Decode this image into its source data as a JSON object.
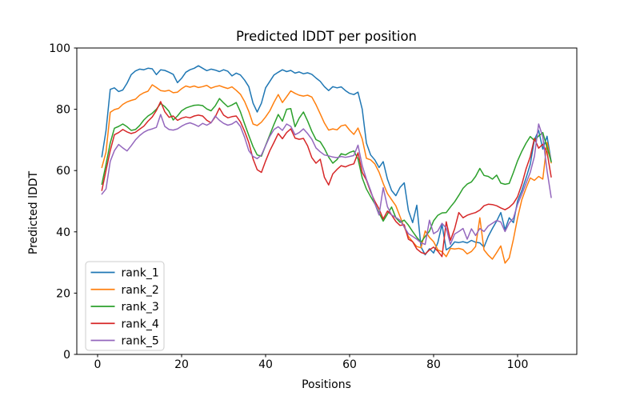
{
  "figure": {
    "background": "#ffffff"
  },
  "chart_data": {
    "type": "line",
    "title": "Predicted lDDT per position",
    "xlabel": "Positions",
    "ylabel": "Predicted lDDT",
    "grid": false,
    "legend_position": "lower left",
    "x_start": 1,
    "xticks": [
      0,
      20,
      40,
      60,
      80,
      100
    ],
    "yticks": [
      0,
      20,
      40,
      60,
      80,
      100
    ],
    "ylim": [
      0,
      100
    ],
    "xlim": [
      -5,
      114
    ],
    "series": [
      {
        "name": "rank_1",
        "color": "#1f77b4",
        "values": [
          64.5,
          73,
          86.5,
          87,
          85.8,
          86.3,
          88.5,
          91.3,
          92.5,
          93.1,
          92.9,
          93.4,
          93.2,
          91.3,
          92.9,
          92.7,
          92.1,
          91.4,
          88.7,
          90.1,
          92.1,
          92.9,
          93.4,
          94.2,
          93.4,
          92.6,
          93.1,
          92.8,
          92.3,
          92.9,
          92.4,
          90.9,
          91.8,
          91.2,
          89.5,
          87.4,
          82,
          79.1,
          82,
          87,
          89.1,
          91.2,
          92.1,
          92.9,
          92.3,
          92.7,
          91.8,
          92.2,
          91.6,
          91.9,
          91.4,
          90.2,
          89.1,
          87.4,
          86.1,
          87.4,
          87,
          87.3,
          86.1,
          85.2,
          84.8,
          85.6,
          80,
          69,
          65.1,
          63.5,
          61,
          62.9,
          57.2,
          53.5,
          51.8,
          54.5,
          56,
          47,
          43,
          48.7,
          35,
          32.5,
          34.5,
          33.1,
          36.5,
          42.4,
          34.1,
          35,
          36.7,
          36.5,
          36.8,
          36.4,
          37.2,
          36.6,
          36.4,
          35,
          38.5,
          41.1,
          43.5,
          46.3,
          40.7,
          44.6,
          43,
          50.1,
          53.5,
          57.5,
          62,
          70,
          73.1,
          67,
          71.2,
          62.9
        ]
      },
      {
        "name": "rank_2",
        "color": "#ff7f0e",
        "values": [
          61,
          66,
          79,
          79.9,
          80.3,
          81.6,
          82.4,
          82.9,
          83.3,
          84.6,
          85.4,
          85.9,
          88,
          87.1,
          86.1,
          85.9,
          86.2,
          85.4,
          85.6,
          86.7,
          87.6,
          87.2,
          87.6,
          87.1,
          87.4,
          87.8,
          86.9,
          87.4,
          87.7,
          87.2,
          86.8,
          87.3,
          86.2,
          84.9,
          82.5,
          79.3,
          75.2,
          74.7,
          75.8,
          77.5,
          79.5,
          82.3,
          84.8,
          82.2,
          84.1,
          86,
          85.2,
          84.6,
          84.3,
          84.6,
          84,
          81.5,
          78.5,
          75.5,
          73.2,
          73.6,
          73.3,
          74.6,
          74.9,
          73.2,
          71.8,
          73.9,
          70.3,
          64,
          63.5,
          62.2,
          59.5,
          55.8,
          52.5,
          50.5,
          48.5,
          45,
          41.5,
          38.5,
          36.8,
          35.2,
          34.8,
          40.3,
          38.2,
          36.8,
          34.1,
          33.5,
          31.9,
          34.6,
          34.4,
          34.6,
          34.2,
          32.8,
          33.6,
          35.2,
          44.6,
          34.1,
          32.4,
          31.1,
          33.2,
          35.4,
          29.8,
          31.5,
          37.6,
          44.6,
          50.5,
          54.2,
          57.6,
          56.8,
          58.1,
          57.2,
          69.2,
          62.5
        ]
      },
      {
        "name": "rank_3",
        "color": "#2ca02c",
        "values": [
          55.5,
          62,
          69,
          73.8,
          74.4,
          75.2,
          74.3,
          73.1,
          73.4,
          74.7,
          76.5,
          77.8,
          78.7,
          80,
          81.9,
          80.9,
          79.3,
          76.5,
          77.8,
          79.5,
          80.4,
          80.9,
          81.3,
          81.4,
          81.2,
          80.1,
          79.5,
          81.1,
          83.5,
          82.1,
          80.8,
          81.4,
          82.2,
          79.2,
          75.2,
          71.5,
          67.8,
          65.1,
          64.7,
          68.2,
          71.7,
          75.1,
          78.3,
          76.1,
          80,
          80.2,
          74.3,
          77.1,
          79.1,
          76.2,
          72.8,
          70.1,
          69.4,
          67.2,
          64.4,
          62.4,
          63.6,
          65.5,
          65.1,
          65.9,
          66.4,
          63.8,
          57.6,
          54,
          51.5,
          49.2,
          46.2,
          43.5,
          45.8,
          48.1,
          44.6,
          43.1,
          43.8,
          42.2,
          40.1,
          38.2,
          36.6,
          38.5,
          40.2,
          43.6,
          45.4,
          46.2,
          46.3,
          48.1,
          49.8,
          51.9,
          54.2,
          55.6,
          56.3,
          58.1,
          60.7,
          58.4,
          58.1,
          57.2,
          58.5,
          55.9,
          55.5,
          55.8,
          59.4,
          63.2,
          66.3,
          68.9,
          71.1,
          69.8,
          71.3,
          72.4,
          67.5,
          62.9
        ]
      },
      {
        "name": "rank_4",
        "color": "#d62728",
        "values": [
          53.5,
          60,
          66.5,
          71.7,
          72.4,
          73.4,
          72.6,
          72.1,
          72.5,
          73.5,
          74.5,
          76.1,
          77.5,
          79.6,
          82.5,
          79.2,
          77.4,
          77.8,
          76.4,
          77.1,
          77.5,
          77.2,
          77.8,
          78.1,
          77.8,
          76.4,
          75.6,
          77.5,
          80.4,
          78.1,
          77.2,
          77.6,
          77.8,
          75.9,
          72.8,
          69.1,
          63.8,
          60.3,
          59.4,
          63.1,
          66.5,
          69.2,
          72.1,
          70.4,
          72.4,
          73.6,
          70.6,
          70.2,
          70.5,
          68.1,
          64.2,
          62.4,
          63.7,
          57.8,
          55.3,
          58.9,
          60.4,
          61.6,
          61.2,
          61.8,
          62.2,
          65.8,
          59.4,
          56.9,
          53,
          50,
          47.5,
          44.2,
          46.8,
          45.5,
          43.4,
          42.1,
          42.3,
          37.6,
          36.8,
          34.4,
          33.3,
          32.8,
          34.1,
          35,
          33.7,
          31.9,
          43.3,
          37.2,
          41,
          46.3,
          44.6,
          45.4,
          45.9,
          46.3,
          47.1,
          48.5,
          49,
          48.9,
          48.5,
          47.8,
          47.2,
          48,
          49.3,
          51.5,
          55.5,
          60.5,
          64.5,
          70.5,
          67.3,
          68.6,
          66,
          57.9
        ]
      },
      {
        "name": "rank_5",
        "color": "#9467bd",
        "values": [
          52.3,
          54,
          63,
          66.5,
          68.5,
          67.4,
          66.4,
          68.1,
          70,
          71.4,
          72.5,
          73.2,
          73.6,
          74.1,
          78.3,
          74.4,
          73.4,
          73.2,
          73.6,
          74.5,
          75.2,
          75.6,
          75.1,
          74.4,
          75.4,
          74.8,
          75.6,
          77.8,
          76.4,
          75.4,
          74.8,
          75.2,
          76.1,
          74.4,
          70.8,
          66.5,
          64.6,
          63.9,
          65.1,
          68.1,
          71.2,
          73.4,
          74.3,
          73.1,
          75.2,
          74.4,
          71.7,
          72.4,
          73.6,
          72.1,
          70.2,
          67.4,
          66.1,
          65.1,
          64.8,
          64.4,
          64.2,
          64.6,
          64.3,
          64.6,
          64.9,
          68.3,
          61.6,
          57.2,
          53.5,
          49.3,
          45.5,
          54.4,
          48.2,
          45.5,
          44.7,
          43.8,
          41.6,
          39.4,
          38.5,
          37.6,
          36.4,
          35.9,
          43.8,
          39.4,
          40.3,
          42.8,
          41.2,
          35.9,
          39.3,
          40.1,
          41.1,
          37.6,
          41,
          38.8,
          41.1,
          40.1,
          41.9,
          42.8,
          43.7,
          43.2,
          40.1,
          42.9,
          44.5,
          49,
          52.3,
          55.8,
          59.4,
          64.6,
          75.2,
          71,
          60,
          51.2
        ]
      }
    ]
  }
}
